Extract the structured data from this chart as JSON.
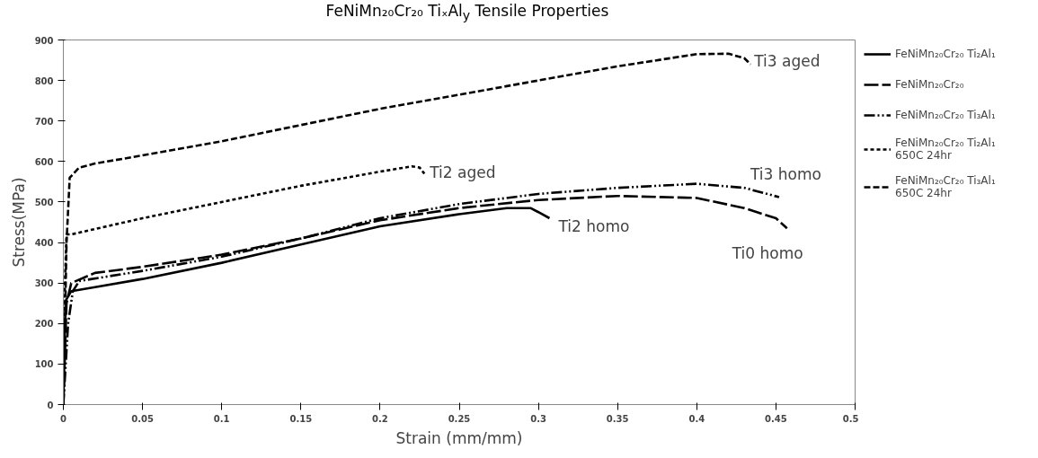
{
  "chart_data": {
    "type": "line",
    "title": "FeNiMn₂₀Cr₂₀ TiₓAl$_{y}$ Tensile Properties",
    "xlabel": "Strain (mm/mm)",
    "ylabel": "Stress(MPa)",
    "xlim": [
      0,
      0.5
    ],
    "ylim": [
      0,
      900
    ],
    "xticks": [
      0,
      0.05,
      0.1,
      0.15,
      0.2,
      0.25,
      0.3,
      0.35,
      0.4,
      0.45,
      0.5
    ],
    "yticks": [
      0,
      100,
      200,
      300,
      400,
      500,
      600,
      700,
      800,
      900
    ],
    "grid": false,
    "legend": "right",
    "marker": "none",
    "series": [
      {
        "name": "FeNiMn₂₀Cr₂₀ Ti₂Al₁",
        "color": "#000000",
        "line_style": "solid",
        "x": [
          0,
          0.001,
          0.002,
          0.005,
          0.02,
          0.05,
          0.1,
          0.15,
          0.2,
          0.25,
          0.28,
          0.295,
          0.3,
          0.307
        ],
        "values": [
          0,
          200,
          260,
          280,
          290,
          310,
          350,
          395,
          440,
          470,
          485,
          485,
          475,
          460
        ]
      },
      {
        "name": "FeNiMn₂₀Cr₂₀",
        "color": "#000000",
        "line_style": "longdash",
        "x": [
          0,
          0.002,
          0.005,
          0.02,
          0.05,
          0.1,
          0.15,
          0.2,
          0.25,
          0.3,
          0.35,
          0.4,
          0.43,
          0.45,
          0.457
        ],
        "values": [
          0,
          250,
          300,
          325,
          340,
          370,
          410,
          455,
          485,
          505,
          515,
          510,
          485,
          460,
          435
        ]
      },
      {
        "name": "FeNiMn₂₀Cr₂₀ Ti₃Al₁",
        "color": "#000000",
        "line_style": "dashdotdot",
        "x": [
          0,
          0.003,
          0.006,
          0.01,
          0.05,
          0.1,
          0.15,
          0.2,
          0.25,
          0.3,
          0.35,
          0.4,
          0.43,
          0.452
        ],
        "values": [
          0,
          200,
          280,
          305,
          330,
          365,
          410,
          460,
          495,
          520,
          535,
          545,
          535,
          512
        ]
      },
      {
        "name": "FeNiMn₂₀Cr₂₀ Ti₂Al₁\n650C 24hr",
        "color": "#000000",
        "line_style": "dotted",
        "x": [
          0,
          0.001,
          0.002,
          0.005,
          0.05,
          0.1,
          0.15,
          0.2,
          0.22,
          0.225,
          0.228
        ],
        "values": [
          0,
          300,
          420,
          420,
          460,
          500,
          540,
          575,
          588,
          585,
          570
        ]
      },
      {
        "name": "FeNiMn₂₀Cr₂₀ Ti₃Al₁\n650C 24hr",
        "color": "#000000",
        "line_style": "dashed",
        "x": [
          0,
          0.002,
          0.004,
          0.01,
          0.02,
          0.05,
          0.1,
          0.2,
          0.3,
          0.35,
          0.4,
          0.42,
          0.43,
          0.434
        ],
        "values": [
          0,
          400,
          560,
          585,
          595,
          615,
          650,
          730,
          800,
          835,
          865,
          866,
          855,
          840
        ]
      }
    ],
    "annotations": [
      {
        "text": "Ti3 aged",
        "x": 0.434,
        "y": 840
      },
      {
        "text": "Ti2 aged",
        "x": 0.228,
        "y": 570
      },
      {
        "text": "Ti2 homo",
        "x": 0.307,
        "y": 460
      },
      {
        "text": "Ti3 homo",
        "x": 0.452,
        "y": 512
      },
      {
        "text": "Ti0 homo",
        "x": 0.457,
        "y": 435
      }
    ]
  }
}
